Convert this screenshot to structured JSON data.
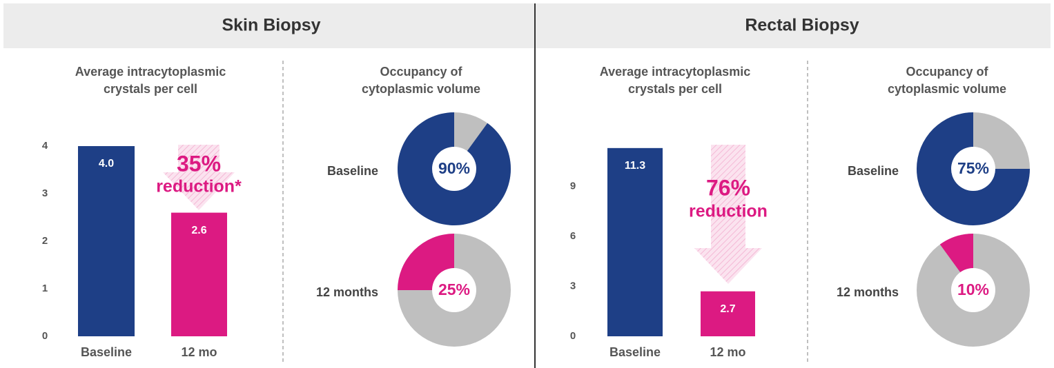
{
  "sections": [
    {
      "title": "Skin Biopsy"
    },
    {
      "title": "Rectal Biopsy"
    }
  ],
  "chart_data": [
    {
      "type": "bar",
      "title": [
        "Average intracytoplasmic",
        "crystals per cell"
      ],
      "categories": [
        "Baseline",
        "12 mo"
      ],
      "values": [
        4.0,
        2.6
      ],
      "value_labels": [
        "4.0",
        "2.6"
      ],
      "colors": [
        "#1e3f86",
        "#dc1a82"
      ],
      "ylim": [
        0,
        4
      ],
      "yticks": [
        0,
        1,
        2,
        3,
        4
      ],
      "annotation": [
        "35%",
        "reduction*"
      ]
    },
    {
      "type": "pie",
      "title": [
        "Occupancy of",
        "cytoplasmic volume"
      ],
      "categories": [
        "Baseline",
        "12 months"
      ],
      "values": [
        90,
        25
      ],
      "value_labels": [
        "90%",
        "25%"
      ],
      "colors": [
        "#1e3f86",
        "#dc1a82"
      ],
      "remainder_color": "#bfbfbf"
    },
    {
      "type": "bar",
      "title": [
        "Average intracytoplasmic",
        "crystals per cell"
      ],
      "categories": [
        "Baseline",
        "12 mo"
      ],
      "values": [
        11.3,
        2.7
      ],
      "value_labels": [
        "11.3",
        "2.7"
      ],
      "colors": [
        "#1e3f86",
        "#dc1a82"
      ],
      "ylim": [
        0,
        11.5
      ],
      "yticks": [
        0,
        3,
        6,
        9
      ],
      "annotation": [
        "76%",
        "reduction"
      ]
    },
    {
      "type": "pie",
      "title": [
        "Occupancy of",
        "cytoplasmic volume"
      ],
      "categories": [
        "Baseline",
        "12 months"
      ],
      "values": [
        75,
        10
      ],
      "value_labels": [
        "75%",
        "10%"
      ],
      "colors": [
        "#1e3f86",
        "#dc1a82"
      ],
      "remainder_color": "#bfbfbf"
    }
  ]
}
